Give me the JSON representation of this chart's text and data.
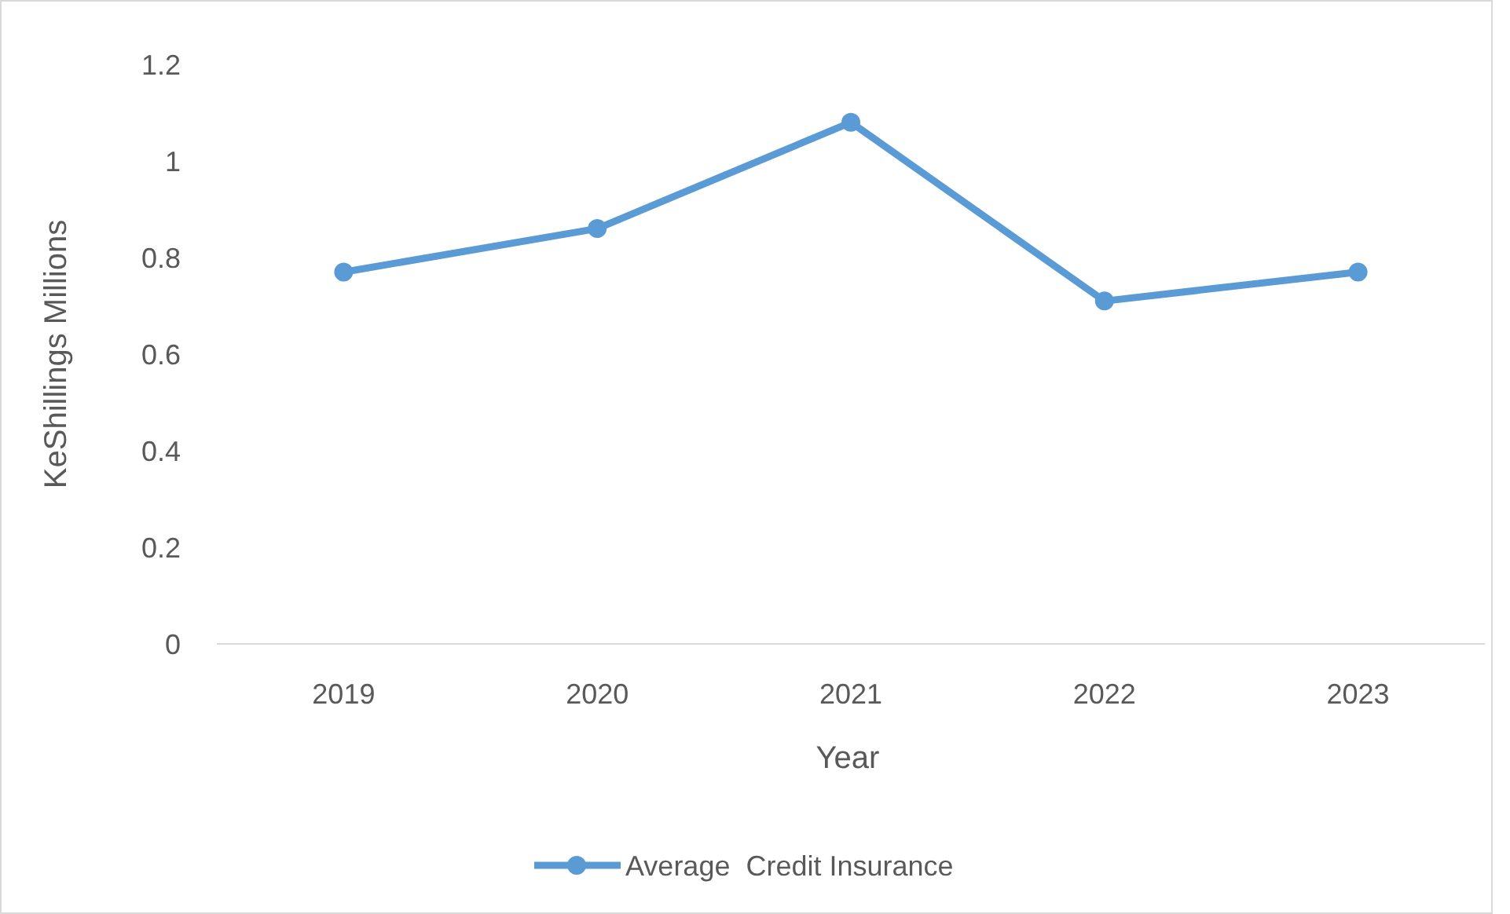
{
  "chart_data": {
    "type": "line",
    "xlabel": "Year",
    "ylabel": "KeShillings Millions",
    "categories": [
      "2019",
      "2020",
      "2021",
      "2022",
      "2023"
    ],
    "series": [
      {
        "name": "Average  Credit Insurance",
        "color": "#5b9bd5",
        "values": [
          0.77,
          0.86,
          1.08,
          0.71,
          0.77
        ]
      }
    ],
    "ylim": [
      0,
      1.2
    ],
    "yticks": [
      0,
      0.2,
      0.4,
      0.6,
      0.8,
      1,
      1.2
    ],
    "grid": false,
    "legend": "bottom",
    "marker": "circle",
    "line_style": "solid"
  }
}
